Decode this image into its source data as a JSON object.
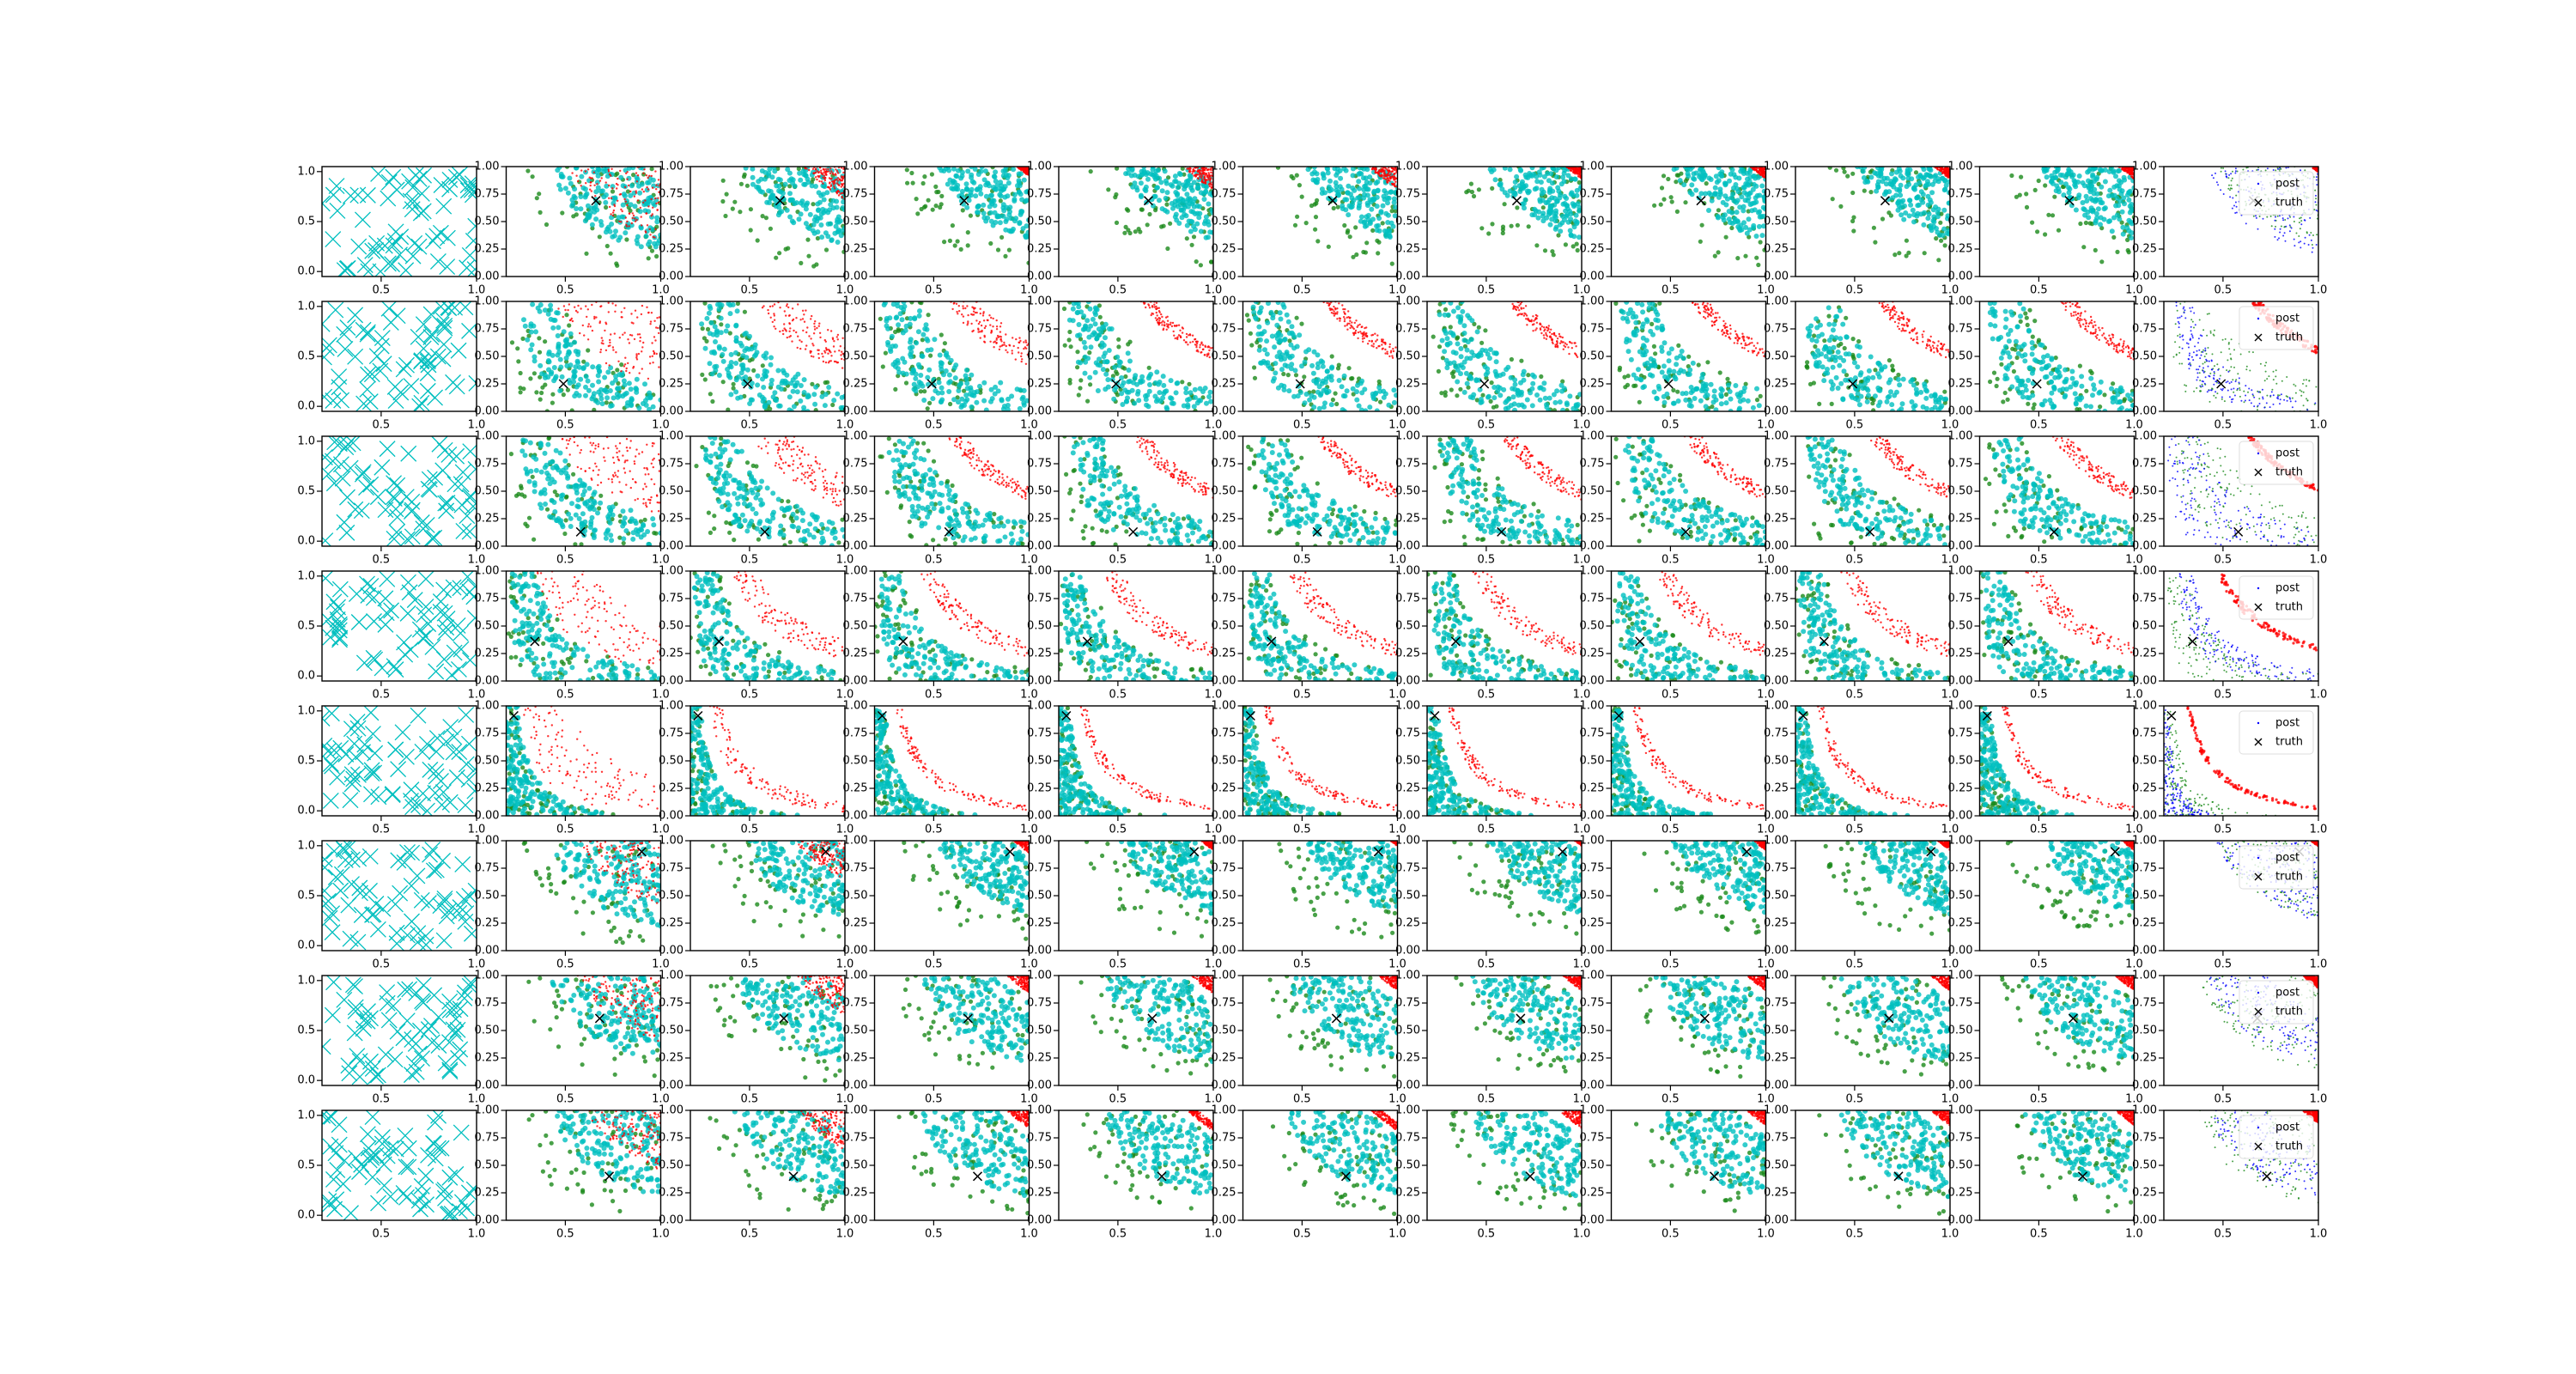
{
  "chart_data": {
    "type": "scatter-grid",
    "xlim": [
      0.19,
      1.0
    ],
    "ylim": [
      0,
      1
    ],
    "xticks": [
      0.5,
      {
        "value": 1.0,
        "label": "1.0"
      }
    ],
    "yticks": [
      {
        "value": 0,
        "label": "0.00"
      },
      {
        "value": 0.25,
        "label": "0.25"
      },
      {
        "value": 0.5,
        "label": "0.50"
      },
      {
        "value": 0.75,
        "label": "0.75"
      },
      {
        "value": 1,
        "label": "1.00"
      }
    ],
    "prior_ylim": [
      -0.05,
      1.05
    ],
    "prior_yticks": [
      {
        "value": 0,
        "label": "0.0"
      },
      0.5,
      {
        "value": 1,
        "label": "1.0"
      }
    ],
    "legend": [
      "post",
      "truth"
    ],
    "colors": {
      "red": "#ff0000",
      "cyan": "#00bfbf",
      "green": "#1a8a1a",
      "blue": "#0000ff",
      "truth": "#000000"
    },
    "rows": [
      {
        "truth": [
          0.66,
          0.69
        ],
        "panels": [
          [
            0.35,
            0.89,
            0.25,
            0.89,
            0.1,
            0.89
          ],
          [
            0.65,
            0.89,
            0.3,
            0.85,
            0.12,
            0.8
          ],
          [
            0.82,
            0.89,
            0.35,
            0.8,
            0.15,
            0.78
          ],
          [
            0.72,
            0.89,
            0.35,
            0.8,
            0.15,
            0.78
          ],
          [
            0.72,
            0.89,
            0.35,
            0.8,
            0.15,
            0.78
          ],
          [
            0.8,
            0.89,
            0.35,
            0.8,
            0.15,
            0.78
          ],
          [
            0.8,
            0.89,
            0.35,
            0.8,
            0.15,
            0.78
          ],
          [
            0.8,
            0.89,
            0.35,
            0.8,
            0.15,
            0.78
          ],
          [
            0.8,
            0.89,
            0.35,
            0.8,
            0.15,
            0.78
          ],
          [
            0.8,
            0.89,
            0.35,
            0.8,
            0.15,
            0.78
          ]
        ],
        "post": [
          0.25,
          0.89,
          0.3,
          0.89,
          0.85,
          0.89
        ]
      },
      {
        "truth": [
          0.49,
          0.25
        ],
        "panels": [
          [
            0.28,
            0.89,
            0.08,
            0.28,
            0.02,
            0.32
          ],
          [
            0.38,
            0.62,
            0.05,
            0.25,
            0.02,
            0.3
          ],
          [
            0.42,
            0.6,
            0.05,
            0.24,
            0.02,
            0.28
          ],
          [
            0.46,
            0.56,
            0.05,
            0.24,
            0.02,
            0.28
          ],
          [
            0.46,
            0.56,
            0.05,
            0.24,
            0.02,
            0.28
          ],
          [
            0.46,
            0.56,
            0.05,
            0.24,
            0.02,
            0.28
          ],
          [
            0.46,
            0.56,
            0.05,
            0.24,
            0.02,
            0.28
          ],
          [
            0.46,
            0.56,
            0.05,
            0.24,
            0.02,
            0.28
          ],
          [
            0.46,
            0.56,
            0.05,
            0.24,
            0.02,
            0.28
          ],
          [
            0.46,
            0.56,
            0.05,
            0.24,
            0.02,
            0.28
          ]
        ],
        "post": [
          0.06,
          0.16,
          0.03,
          0.3,
          0.5,
          0.56
        ]
      },
      {
        "truth": [
          0.58,
          0.13
        ],
        "panels": [
          [
            0.3,
            0.89,
            0.08,
            0.28,
            0.02,
            0.3
          ],
          [
            0.36,
            0.6,
            0.07,
            0.26,
            0.02,
            0.3
          ],
          [
            0.42,
            0.52,
            0.07,
            0.25,
            0.02,
            0.28
          ],
          [
            0.42,
            0.52,
            0.07,
            0.25,
            0.02,
            0.28
          ],
          [
            0.42,
            0.52,
            0.07,
            0.25,
            0.02,
            0.28
          ],
          [
            0.42,
            0.52,
            0.07,
            0.25,
            0.02,
            0.28
          ],
          [
            0.42,
            0.52,
            0.07,
            0.25,
            0.02,
            0.28
          ],
          [
            0.42,
            0.52,
            0.07,
            0.25,
            0.02,
            0.28
          ],
          [
            0.42,
            0.52,
            0.07,
            0.25,
            0.02,
            0.28
          ],
          [
            0.42,
            0.52,
            0.07,
            0.25,
            0.02,
            0.28
          ]
        ],
        "post": [
          0.02,
          0.2,
          0.05,
          0.3,
          0.48,
          0.52
        ]
      },
      {
        "truth": [
          0.34,
          0.36
        ],
        "panels": [
          [
            0.16,
            0.5,
            0.02,
            0.16,
            0.0,
            0.18
          ],
          [
            0.24,
            0.38,
            0.02,
            0.15,
            0.0,
            0.17
          ],
          [
            0.26,
            0.36,
            0.02,
            0.15,
            0.0,
            0.17
          ],
          [
            0.26,
            0.36,
            0.02,
            0.15,
            0.0,
            0.17
          ],
          [
            0.26,
            0.36,
            0.02,
            0.15,
            0.0,
            0.17
          ],
          [
            0.26,
            0.36,
            0.02,
            0.15,
            0.0,
            0.17
          ],
          [
            0.26,
            0.36,
            0.02,
            0.15,
            0.0,
            0.17
          ],
          [
            0.26,
            0.36,
            0.02,
            0.15,
            0.0,
            0.17
          ],
          [
            0.26,
            0.36,
            0.02,
            0.15,
            0.0,
            0.17
          ],
          [
            0.26,
            0.36,
            0.02,
            0.15,
            0.0,
            0.17
          ]
        ],
        "post": [
          0.07,
          0.16,
          0.02,
          0.14,
          0.3,
          0.34
        ]
      },
      {
        "truth": [
          0.23,
          0.91
        ],
        "panels": [
          [
            0.09,
            0.35,
            0.0,
            0.07,
            0.0,
            0.07
          ],
          [
            0.11,
            0.18,
            0.0,
            0.06,
            0.0,
            0.06
          ],
          [
            0.12,
            0.16,
            0.0,
            0.06,
            0.0,
            0.06
          ],
          [
            0.12,
            0.16,
            0.0,
            0.06,
            0.0,
            0.06
          ],
          [
            0.12,
            0.16,
            0.0,
            0.06,
            0.0,
            0.06
          ],
          [
            0.12,
            0.16,
            0.0,
            0.06,
            0.0,
            0.06
          ],
          [
            0.12,
            0.16,
            0.0,
            0.06,
            0.0,
            0.06
          ],
          [
            0.12,
            0.16,
            0.0,
            0.06,
            0.0,
            0.06
          ],
          [
            0.12,
            0.16,
            0.0,
            0.06,
            0.0,
            0.06
          ],
          [
            0.12,
            0.16,
            0.0,
            0.06,
            0.0,
            0.06
          ]
        ],
        "post": [
          0.0,
          0.03,
          0.0,
          0.06,
          0.13,
          0.15
        ]
      },
      {
        "truth": [
          0.9,
          0.9
        ],
        "panels": [
          [
            0.4,
            0.89,
            0.25,
            0.89,
            0.1,
            0.89
          ],
          [
            0.6,
            0.89,
            0.3,
            0.85,
            0.12,
            0.8
          ],
          [
            0.8,
            0.89,
            0.35,
            0.8,
            0.15,
            0.78
          ],
          [
            0.82,
            0.89,
            0.35,
            0.8,
            0.15,
            0.78
          ],
          [
            0.85,
            0.89,
            0.35,
            0.8,
            0.15,
            0.78
          ],
          [
            0.85,
            0.89,
            0.35,
            0.8,
            0.15,
            0.78
          ],
          [
            0.82,
            0.89,
            0.35,
            0.8,
            0.15,
            0.78
          ],
          [
            0.82,
            0.89,
            0.35,
            0.8,
            0.15,
            0.78
          ],
          [
            0.82,
            0.89,
            0.35,
            0.8,
            0.15,
            0.78
          ],
          [
            0.82,
            0.89,
            0.35,
            0.8,
            0.15,
            0.78
          ]
        ],
        "post": [
          0.3,
          0.89,
          0.3,
          0.89,
          0.85,
          0.89
        ]
      },
      {
        "truth": [
          0.68,
          0.61
        ],
        "panels": [
          [
            0.4,
            0.89,
            0.25,
            0.8,
            0.1,
            0.8
          ],
          [
            0.6,
            0.89,
            0.25,
            0.75,
            0.1,
            0.75
          ],
          [
            0.76,
            0.89,
            0.25,
            0.7,
            0.12,
            0.72
          ],
          [
            0.76,
            0.89,
            0.25,
            0.7,
            0.12,
            0.72
          ],
          [
            0.78,
            0.89,
            0.25,
            0.7,
            0.12,
            0.72
          ],
          [
            0.78,
            0.89,
            0.25,
            0.7,
            0.12,
            0.72
          ],
          [
            0.78,
            0.89,
            0.25,
            0.7,
            0.12,
            0.72
          ],
          [
            0.78,
            0.89,
            0.25,
            0.7,
            0.12,
            0.72
          ],
          [
            0.78,
            0.89,
            0.25,
            0.7,
            0.12,
            0.72
          ],
          [
            0.78,
            0.89,
            0.25,
            0.7,
            0.12,
            0.72
          ]
        ],
        "post": [
          0.25,
          0.6,
          0.2,
          0.8,
          0.8,
          0.89
        ]
      },
      {
        "truth": [
          0.73,
          0.4
        ],
        "panels": [
          [
            0.45,
            0.89,
            0.25,
            0.8,
            0.1,
            0.8
          ],
          [
            0.6,
            0.89,
            0.25,
            0.75,
            0.1,
            0.75
          ],
          [
            0.76,
            0.89,
            0.25,
            0.7,
            0.12,
            0.72
          ],
          [
            0.74,
            0.8,
            0.25,
            0.7,
            0.12,
            0.72
          ],
          [
            0.74,
            0.8,
            0.25,
            0.7,
            0.12,
            0.72
          ],
          [
            0.76,
            0.89,
            0.25,
            0.7,
            0.12,
            0.72
          ],
          [
            0.78,
            0.89,
            0.25,
            0.7,
            0.12,
            0.72
          ],
          [
            0.78,
            0.89,
            0.25,
            0.7,
            0.12,
            0.72
          ],
          [
            0.78,
            0.89,
            0.25,
            0.7,
            0.12,
            0.72
          ],
          [
            0.78,
            0.89,
            0.25,
            0.7,
            0.12,
            0.72
          ]
        ],
        "post": [
          0.25,
          0.6,
          0.2,
          0.8,
          0.8,
          0.89
        ]
      }
    ]
  }
}
